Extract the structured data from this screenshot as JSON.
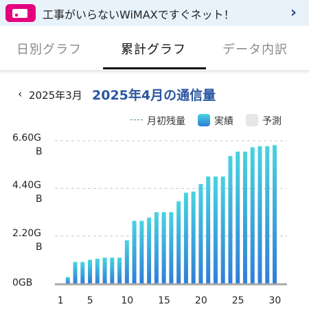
{
  "banner": {
    "text": "工事がいらないWiMAXですぐネット！",
    "chevron": "›",
    "icon": "wifi-router-icon",
    "accent_color": "#e4007f"
  },
  "tabs": [
    {
      "label": "日別グラフ",
      "active": false
    },
    {
      "label": "累計グラフ",
      "active": true
    },
    {
      "label": "データ内訳",
      "active": false
    }
  ],
  "month_nav": {
    "prev_chevron": "‹",
    "prev_label": "2025年3月",
    "current_title": "2025年4月の通信量"
  },
  "legend": {
    "quota_line": "月初残量",
    "actual": "実績",
    "forecast": "予測"
  },
  "colors": {
    "bar_top": "#4ad3e0",
    "bar_bottom": "#2f7ed8",
    "title": "#2b57a1",
    "axis": "#a8a8a8",
    "gridline": "#c8c8c8"
  },
  "chart_data": {
    "type": "bar",
    "x": [
      1,
      2,
      3,
      4,
      5,
      6,
      7,
      8,
      9,
      10,
      11,
      12,
      13,
      14,
      15,
      16,
      17,
      18,
      19,
      20,
      21,
      22,
      23,
      24,
      25,
      26,
      27,
      28,
      29,
      30
    ],
    "series": [
      {
        "name": "実績",
        "values": [
          0.0,
          0.3,
          1.0,
          1.0,
          1.1,
          1.15,
          1.2,
          1.2,
          1.2,
          2.0,
          2.9,
          2.9,
          3.05,
          3.3,
          3.3,
          3.3,
          3.8,
          4.2,
          4.25,
          4.6,
          4.95,
          4.95,
          4.95,
          5.9,
          6.1,
          6.1,
          6.3,
          6.35,
          6.35,
          6.4
        ]
      }
    ],
    "y_ticks": [
      {
        "value": 6.6,
        "line1": "6.60G",
        "line2": "B"
      },
      {
        "value": 4.4,
        "line1": "4.40G",
        "line2": "B"
      },
      {
        "value": 2.2,
        "line1": "2.20G",
        "line2": "B"
      },
      {
        "value": 0,
        "line1": "0GB",
        "line2": ""
      }
    ],
    "x_tick_labels": [
      "1",
      "5",
      "10",
      "15",
      "20",
      "25",
      "30"
    ],
    "ylim": [
      0,
      6.6
    ],
    "grid": true,
    "legend_placement": "top-right"
  }
}
